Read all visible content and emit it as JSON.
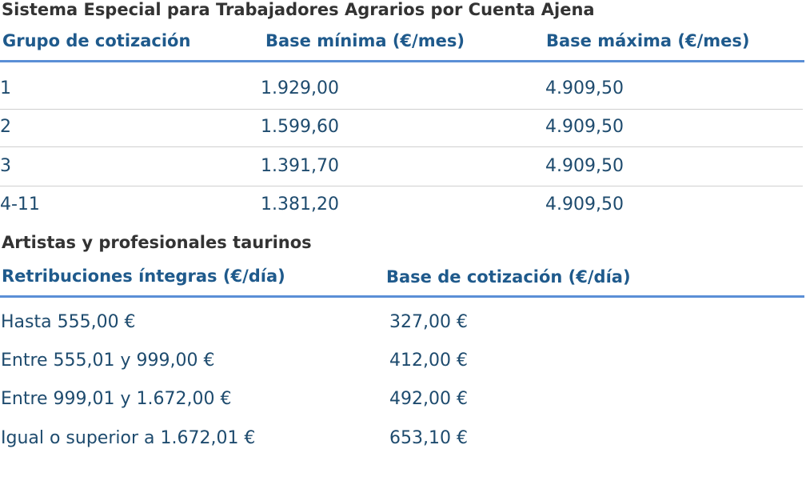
{
  "agrarios": {
    "title": "Sistema Especial para Trabajadores Agrarios por Cuenta Ajena",
    "headers": [
      "Grupo de cotización",
      "Base mínima (€/mes)",
      "Base máxima (€/mes)"
    ],
    "rows": [
      [
        "1",
        "1.929,00",
        "4.909,50"
      ],
      [
        "2",
        "1.599,60",
        "4.909,50"
      ],
      [
        "3",
        "1.391,70",
        "4.909,50"
      ],
      [
        "4-11",
        "1.381,20",
        "4.909,50"
      ]
    ]
  },
  "taurinos": {
    "title": "Artistas y profesionales taurinos",
    "headers": [
      "Retribuciones íntegras (€/día)",
      "Base de cotización (€/día)"
    ],
    "rows": [
      [
        "Hasta 555,00 €",
        "327,00 €"
      ],
      [
        "Entre 555,01 y 999,00 €",
        "412,00 €"
      ],
      [
        "Entre 999,01 y 1.672,00 €",
        "492,00 €"
      ],
      [
        "Igual o superior a 1.672,01 €",
        "653,10 €"
      ]
    ]
  }
}
